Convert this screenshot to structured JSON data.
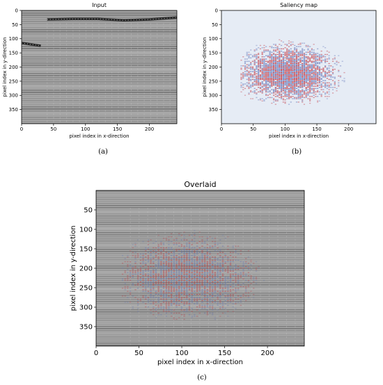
{
  "chart_data": [
    {
      "type": "heatmap",
      "panel_label": "(a)",
      "title": "Input",
      "xlabel": "pixel index in x-direction",
      "ylabel": "pixel index in y-direction",
      "xlim": [
        0,
        243
      ],
      "ylim": [
        400,
        0
      ],
      "x_ticks": [
        0,
        50,
        100,
        150,
        200
      ],
      "y_ticks": [
        0,
        50,
        100,
        150,
        200,
        250,
        300,
        350
      ],
      "colormap": "gray",
      "features": [
        {
          "name": "top reflector",
          "points": [
            [
              40,
              32
            ],
            [
              80,
              30
            ],
            [
              120,
              30
            ],
            [
              160,
              35
            ],
            [
              200,
              32
            ],
            [
              243,
              25
            ]
          ]
        },
        {
          "name": "left reflector",
          "points": [
            [
              0,
              115
            ],
            [
              30,
              125
            ]
          ]
        }
      ]
    },
    {
      "type": "heatmap",
      "panel_label": "(b)",
      "title": "Saliency map",
      "xlabel": "pixel index in x-direction",
      "ylabel": "pixel index in y-direction",
      "xlim": [
        0,
        243
      ],
      "ylim": [
        400,
        0
      ],
      "x_ticks": [
        0,
        50,
        100,
        150,
        200
      ],
      "y_ticks": [
        0,
        50,
        100,
        150,
        200,
        250,
        300,
        350
      ],
      "colormap": "seismic",
      "salient_region": {
        "x_range": [
          30,
          215
        ],
        "y_range": [
          90,
          330
        ],
        "center": [
          105,
          220
        ]
      }
    },
    {
      "type": "heatmap",
      "panel_label": "(c)",
      "title": "Overlaid",
      "xlabel": "pixel index in x-direction",
      "ylabel": "pixel index in y-direction",
      "xlim": [
        0,
        243
      ],
      "ylim": [
        400,
        0
      ],
      "x_ticks": [
        0,
        50,
        100,
        150,
        200
      ],
      "y_ticks": [
        50,
        100,
        150,
        200,
        250,
        300,
        350
      ],
      "colormap": "gray + seismic overlay"
    }
  ],
  "colors": {
    "background_gray": "#a9a9a9",
    "reflector_dark": "#1a1a1a",
    "saliency_red": "#c0303a",
    "saliency_blue": "#5a6fb5",
    "saliency_bg": "#e6ecf5"
  }
}
